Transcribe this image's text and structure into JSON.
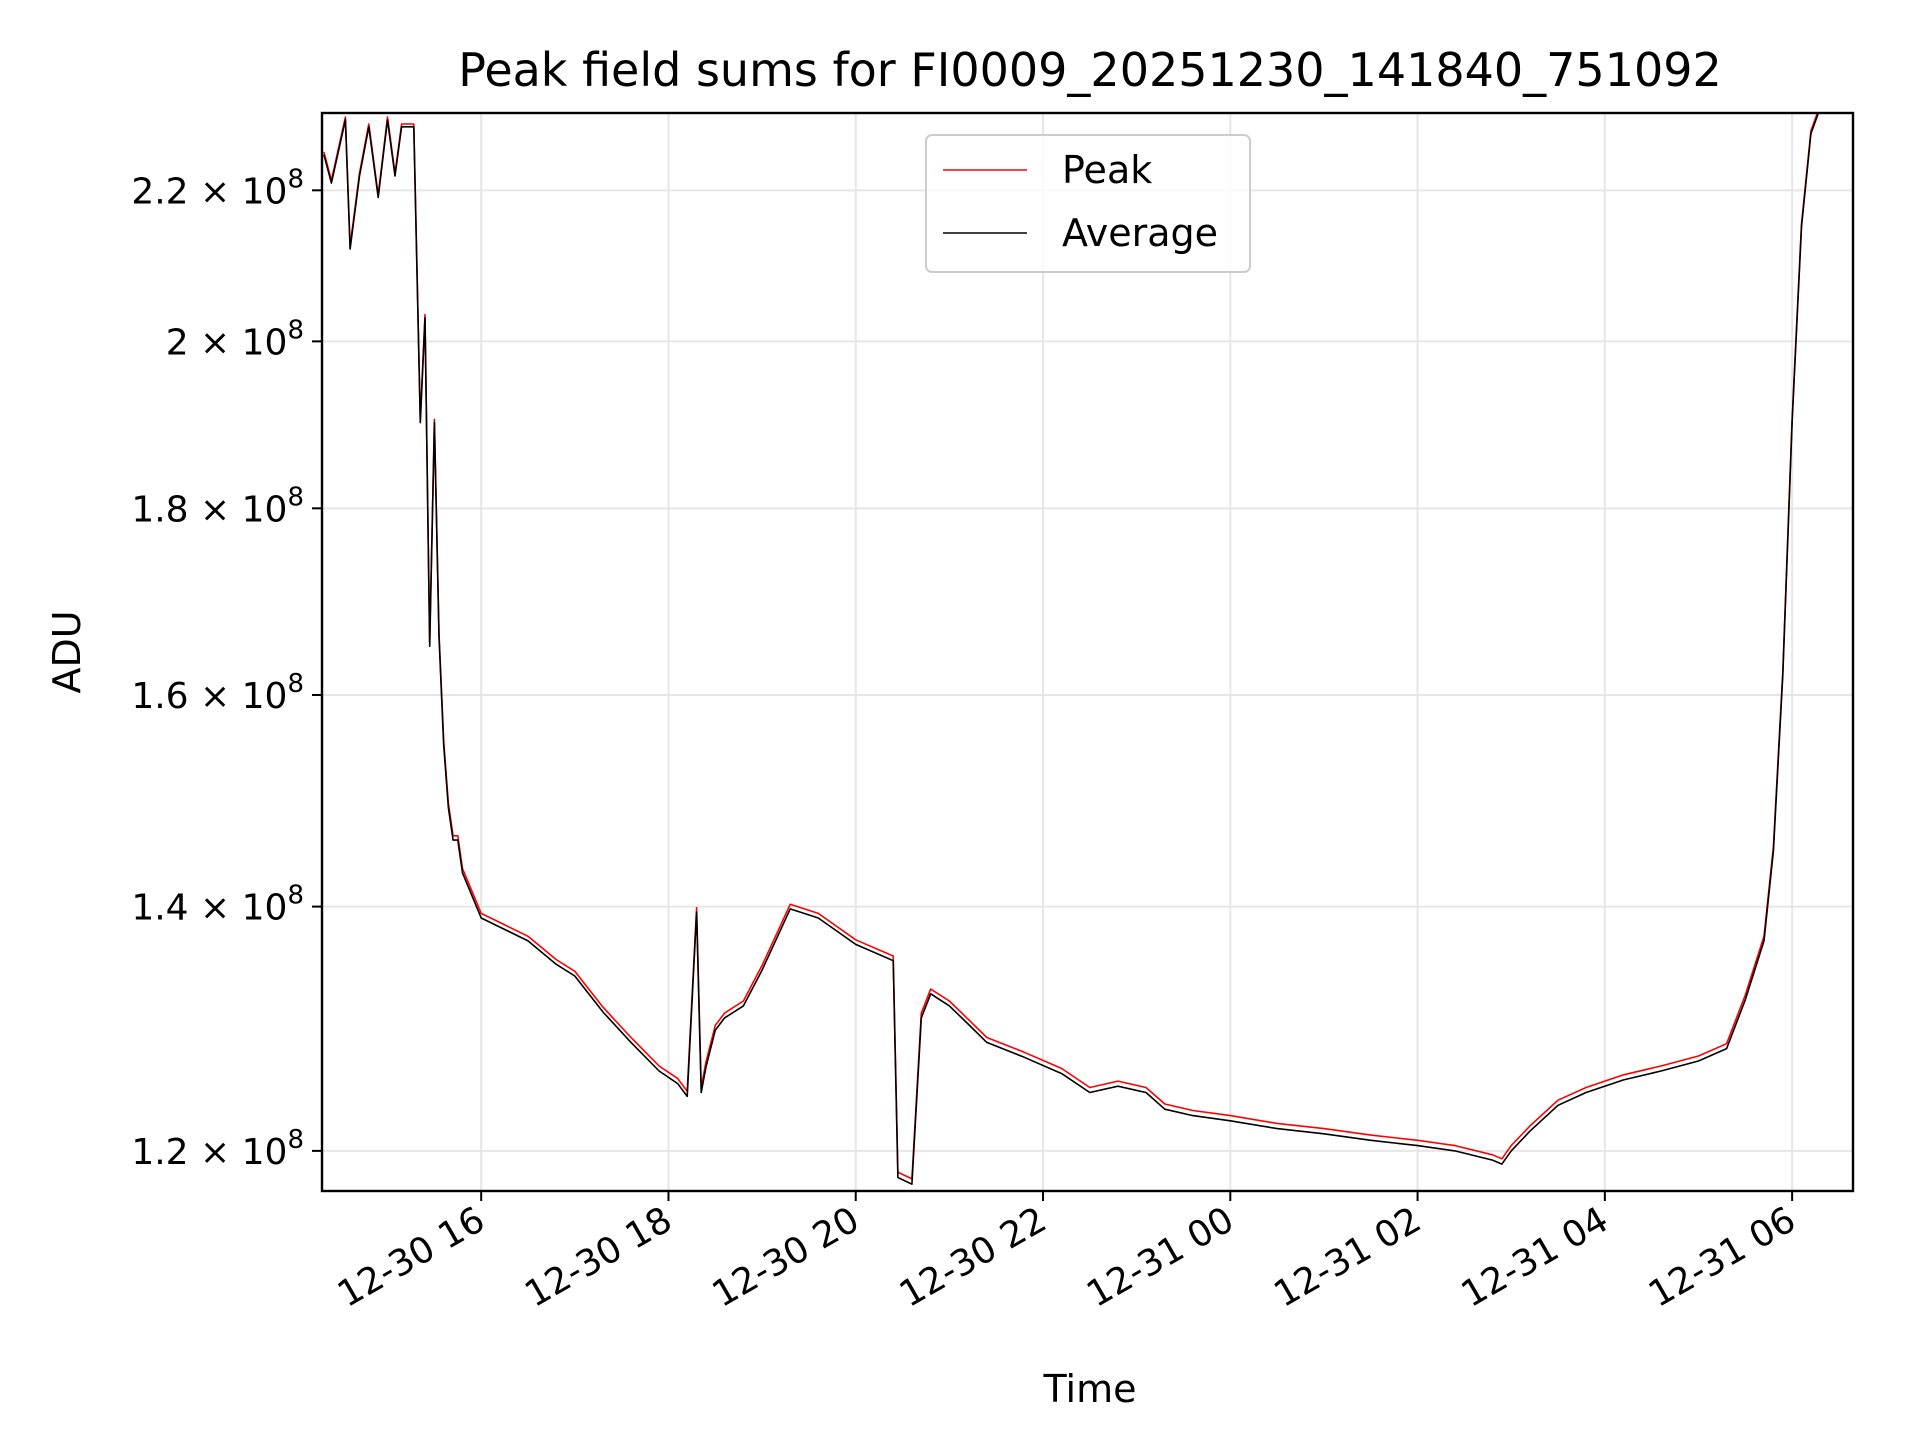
{
  "chart_data": {
    "type": "line",
    "title": "Peak field sums for FI0009_20251230_141840_751092",
    "xlabel": "Time",
    "ylabel": "ADU",
    "y_scale": "log",
    "grid": true,
    "legend_position": "upper-center",
    "xlim_hours": [
      14.3,
      30.65
    ],
    "ylim": [
      117000000,
      231000000
    ],
    "x_ticks": [
      {
        "hours": 16,
        "label": "12-30 16"
      },
      {
        "hours": 18,
        "label": "12-30 18"
      },
      {
        "hours": 20,
        "label": "12-30 20"
      },
      {
        "hours": 22,
        "label": "12-30 22"
      },
      {
        "hours": 24,
        "label": "12-31 00"
      },
      {
        "hours": 26,
        "label": "12-31 02"
      },
      {
        "hours": 28,
        "label": "12-31 04"
      },
      {
        "hours": 30,
        "label": "12-31 06"
      }
    ],
    "y_ticks": [
      {
        "value": 120000000,
        "mantissa": "1.2",
        "exponent": "8"
      },
      {
        "value": 140000000,
        "mantissa": "1.4",
        "exponent": "8"
      },
      {
        "value": 160000000,
        "mantissa": "1.6",
        "exponent": "8"
      },
      {
        "value": 180000000,
        "mantissa": "1.8",
        "exponent": "8"
      },
      {
        "value": 200000000,
        "mantissa": "2",
        "exponent": "8"
      },
      {
        "value": 220000000,
        "mantissa": "2.2",
        "exponent": "8"
      }
    ],
    "x_units": "hours since 2025-12-30 00:00",
    "series": [
      {
        "name": "Peak",
        "color": "#ff0000",
        "offset": 400000,
        "x": [
          14.32,
          14.4,
          14.55,
          14.6,
          14.7,
          14.8,
          14.9,
          15.0,
          15.08,
          15.15,
          15.28,
          15.35,
          15.4,
          15.45,
          15.5,
          15.55,
          15.6,
          15.65,
          15.7,
          15.75,
          15.8,
          15.9,
          16.0,
          16.2,
          16.5,
          16.8,
          17.0,
          17.3,
          17.6,
          17.9,
          18.1,
          18.2,
          18.3,
          18.35,
          18.4,
          18.5,
          18.6,
          18.8,
          19.0,
          19.2,
          19.3,
          19.6,
          20.0,
          20.4,
          20.45,
          20.6,
          20.7,
          20.8,
          21.0,
          21.2,
          21.4,
          21.8,
          22.2,
          22.5,
          22.8,
          23.1,
          23.3,
          23.6,
          24.0,
          24.5,
          25.0,
          25.5,
          26.0,
          26.4,
          26.8,
          26.9,
          27.0,
          27.2,
          27.5,
          27.8,
          28.2,
          28.6,
          29.0,
          29.3,
          29.5,
          29.7,
          29.8,
          29.9,
          30.0,
          30.1,
          30.2,
          30.28
        ],
        "values": [
          225000000,
          221000000,
          230000000,
          212000000,
          222000000,
          229000000,
          219000000,
          230000000,
          222000000,
          229000000,
          229000000,
          190000000,
          203000000,
          165000000,
          190000000,
          166000000,
          155000000,
          149000000,
          146000000,
          146000000,
          143000000,
          141000000,
          139000000,
          138200000,
          137000000,
          135000000,
          134000000,
          131000000,
          128500000,
          126200000,
          125200000,
          124200000,
          139500000,
          124500000,
          126500000,
          129500000,
          130500000,
          131500000,
          134500000,
          138000000,
          139800000,
          139000000,
          136700000,
          135300000,
          118000000,
          117500000,
          130500000,
          132500000,
          131500000,
          130000000,
          128500000,
          127300000,
          126000000,
          124500000,
          125000000,
          124500000,
          123200000,
          122700000,
          122300000,
          121700000,
          121300000,
          120800000,
          120400000,
          120000000,
          119300000,
          119000000,
          120000000,
          121500000,
          123500000,
          124500000,
          125500000,
          126200000,
          127000000,
          128000000,
          132000000,
          137000000,
          145000000,
          162000000,
          190000000,
          215000000,
          228000000,
          231000000
        ]
      },
      {
        "name": "Average",
        "color": "#000000",
        "offset": 0,
        "x": [
          14.32,
          14.4,
          14.55,
          14.6,
          14.7,
          14.8,
          14.9,
          15.0,
          15.08,
          15.15,
          15.28,
          15.35,
          15.4,
          15.45,
          15.5,
          15.55,
          15.6,
          15.65,
          15.7,
          15.75,
          15.8,
          15.9,
          16.0,
          16.2,
          16.5,
          16.8,
          17.0,
          17.3,
          17.6,
          17.9,
          18.1,
          18.2,
          18.3,
          18.35,
          18.4,
          18.5,
          18.6,
          18.8,
          19.0,
          19.2,
          19.3,
          19.6,
          20.0,
          20.4,
          20.45,
          20.6,
          20.7,
          20.8,
          21.0,
          21.2,
          21.4,
          21.8,
          22.2,
          22.5,
          22.8,
          23.1,
          23.3,
          23.6,
          24.0,
          24.5,
          25.0,
          25.5,
          26.0,
          26.4,
          26.8,
          26.9,
          27.0,
          27.2,
          27.5,
          27.8,
          28.2,
          28.6,
          29.0,
          29.3,
          29.5,
          29.7,
          29.8,
          29.9,
          30.0,
          30.1,
          30.2,
          30.28
        ],
        "values": [
          225000000,
          221000000,
          230000000,
          212000000,
          222000000,
          229000000,
          219000000,
          230000000,
          222000000,
          229000000,
          229000000,
          190000000,
          203000000,
          165000000,
          190000000,
          166000000,
          155000000,
          149000000,
          146000000,
          146000000,
          143000000,
          141000000,
          139000000,
          138200000,
          137000000,
          135000000,
          134000000,
          131000000,
          128500000,
          126200000,
          125200000,
          124200000,
          139500000,
          124500000,
          126500000,
          129500000,
          130500000,
          131500000,
          134500000,
          138000000,
          139800000,
          139000000,
          136700000,
          135300000,
          118000000,
          117500000,
          130500000,
          132500000,
          131500000,
          130000000,
          128500000,
          127300000,
          126000000,
          124500000,
          125000000,
          124500000,
          123200000,
          122700000,
          122300000,
          121700000,
          121300000,
          120800000,
          120400000,
          120000000,
          119300000,
          119000000,
          120000000,
          121500000,
          123500000,
          124500000,
          125500000,
          126200000,
          127000000,
          128000000,
          132000000,
          137000000,
          145000000,
          162000000,
          190000000,
          215000000,
          228000000,
          231000000
        ]
      }
    ]
  }
}
